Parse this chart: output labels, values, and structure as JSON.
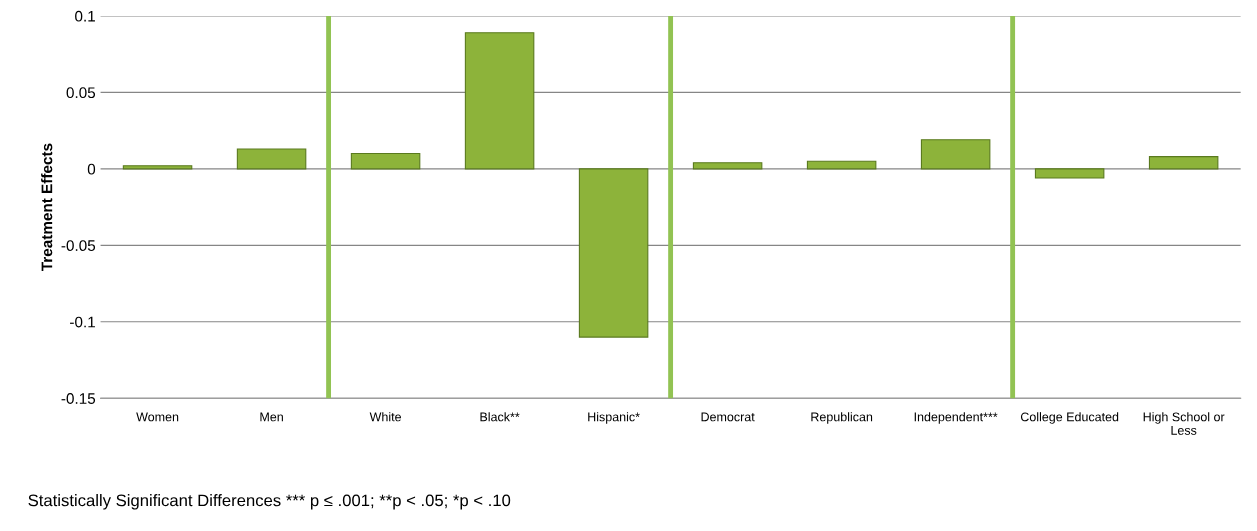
{
  "chart_data": {
    "type": "bar",
    "ylabel": "Treatment Effects",
    "categories": [
      "Women",
      "Men",
      "White",
      "Black**",
      "Hispanic*",
      "Democrat",
      "Republican",
      "Independent***",
      "College Educated",
      "High School or Less"
    ],
    "values": [
      0.002,
      0.013,
      0.01,
      0.089,
      -0.11,
      0.004,
      0.005,
      0.019,
      -0.006,
      0.008
    ],
    "color": "#8db33a",
    "ylim": [
      -0.15,
      0.1
    ],
    "yticks": [
      -0.15,
      -0.1,
      -0.05,
      0,
      0.05,
      0.1
    ],
    "grid": "y",
    "annotations": [
      "Statistically Significant Differences *** p ≤ .001; **p < .05; *p < .10"
    ]
  }
}
